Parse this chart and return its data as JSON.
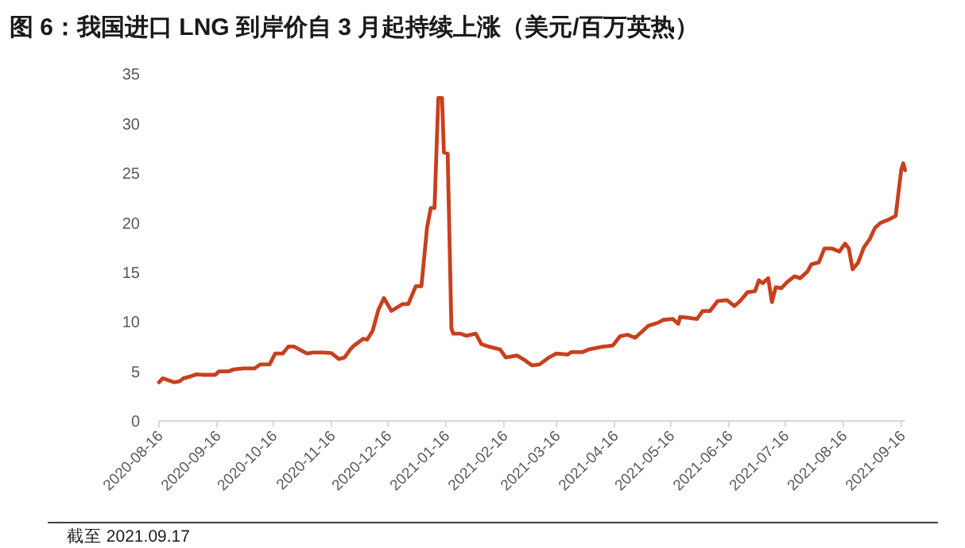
{
  "chart_data": {
    "type": "line",
    "title": "图 6：我国进口 LNG 到岸价自 3 月起持续上涨（美元/百万英热）",
    "annotations": [
      "截至 2021.09.17"
    ],
    "xlim": [
      "2020-08-16",
      "2021-09-18"
    ],
    "ylim": [
      0,
      35
    ],
    "yticks": [
      0,
      5,
      10,
      15,
      20,
      25,
      30,
      35
    ],
    "xticks": [
      "2020-08-16",
      "2020-09-16",
      "2020-10-16",
      "2020-11-16",
      "2020-12-16",
      "2021-01-16",
      "2021-02-16",
      "2021-03-16",
      "2021-04-16",
      "2021-05-16",
      "2021-06-16",
      "2021-07-16",
      "2021-08-16",
      "2021-09-16"
    ],
    "series": [
      {
        "color": "#c8401e",
        "x": [
          "2020-08-16",
          "2020-08-18",
          "2020-08-24",
          "2020-08-27",
          "2020-08-29",
          "2020-09-02",
          "2020-09-05",
          "2020-09-09",
          "2020-09-15",
          "2020-09-17",
          "2020-09-22",
          "2020-09-25",
          "2020-09-30",
          "2020-10-06",
          "2020-10-09",
          "2020-10-14",
          "2020-10-17",
          "2020-10-21",
          "2020-10-24",
          "2020-10-27",
          "2020-10-31",
          "2020-11-03",
          "2020-11-06",
          "2020-11-12",
          "2020-11-16",
          "2020-11-20",
          "2020-11-23",
          "2020-11-26",
          "2020-11-28",
          "2020-12-03",
          "2020-12-05",
          "2020-12-08",
          "2020-12-11",
          "2020-12-14",
          "2020-12-18",
          "2020-12-24",
          "2020-12-27",
          "2020-12-31",
          "2021-01-03",
          "2021-01-06",
          "2021-01-08",
          "2021-01-10",
          "2021-01-12",
          "2021-01-14",
          "2021-01-15",
          "2021-01-17",
          "2021-01-19",
          "2021-01-20",
          "2021-01-24",
          "2021-01-27",
          "2021-02-01",
          "2021-02-04",
          "2021-02-08",
          "2021-02-14",
          "2021-02-17",
          "2021-02-23",
          "2021-02-27",
          "2021-03-03",
          "2021-03-07",
          "2021-03-12",
          "2021-03-16",
          "2021-03-22",
          "2021-03-24",
          "2021-03-30",
          "2021-04-02",
          "2021-04-10",
          "2021-04-15",
          "2021-04-19",
          "2021-04-23",
          "2021-04-27",
          "2021-04-30",
          "2021-05-04",
          "2021-05-09",
          "2021-05-12",
          "2021-05-17",
          "2021-05-20",
          "2021-05-21",
          "2021-05-26",
          "2021-05-30",
          "2021-06-02",
          "2021-06-06",
          "2021-06-10",
          "2021-06-15",
          "2021-06-19",
          "2021-06-22",
          "2021-06-26",
          "2021-06-30",
          "2021-07-02",
          "2021-07-04",
          "2021-07-07",
          "2021-07-09",
          "2021-07-11",
          "2021-07-14",
          "2021-07-17",
          "2021-07-21",
          "2021-07-24",
          "2021-07-28",
          "2021-07-30",
          "2021-08-03",
          "2021-08-06",
          "2021-08-10",
          "2021-08-14",
          "2021-08-17",
          "2021-08-19",
          "2021-08-21",
          "2021-08-24",
          "2021-08-27",
          "2021-08-30",
          "2021-09-02",
          "2021-09-05",
          "2021-09-09",
          "2021-09-13",
          "2021-09-16",
          "2021-09-17",
          "2021-09-18"
        ],
        "values": [
          3.9,
          4.3,
          3.9,
          4.0,
          4.3,
          4.5,
          4.7,
          4.65,
          4.65,
          5.0,
          5.0,
          5.2,
          5.3,
          5.3,
          5.7,
          5.7,
          6.8,
          6.8,
          7.5,
          7.5,
          7.1,
          6.8,
          6.9,
          6.9,
          6.85,
          6.25,
          6.4,
          7.2,
          7.6,
          8.3,
          8.2,
          9.1,
          11.2,
          12.4,
          11.1,
          11.8,
          11.8,
          13.6,
          13.6,
          19.5,
          21.5,
          21.5,
          32.6,
          32.6,
          27.1,
          27.0,
          9.35,
          8.8,
          8.8,
          8.6,
          8.8,
          7.75,
          7.5,
          7.2,
          6.4,
          6.6,
          6.15,
          5.6,
          5.7,
          6.4,
          6.8,
          6.7,
          6.95,
          6.95,
          7.2,
          7.5,
          7.6,
          8.55,
          8.7,
          8.4,
          8.9,
          9.6,
          9.9,
          10.2,
          10.3,
          9.8,
          10.5,
          10.4,
          10.3,
          11.1,
          11.1,
          12.1,
          12.2,
          11.6,
          12.1,
          13.0,
          13.1,
          14.2,
          13.9,
          14.4,
          12.0,
          13.5,
          13.4,
          14.0,
          14.6,
          14.4,
          15.1,
          15.8,
          16.0,
          17.4,
          17.4,
          17.1,
          17.9,
          17.4,
          15.3,
          16.0,
          17.5,
          18.3,
          19.5,
          20.0,
          20.3,
          20.7,
          25.4,
          26.0,
          25.3
        ]
      }
    ]
  }
}
